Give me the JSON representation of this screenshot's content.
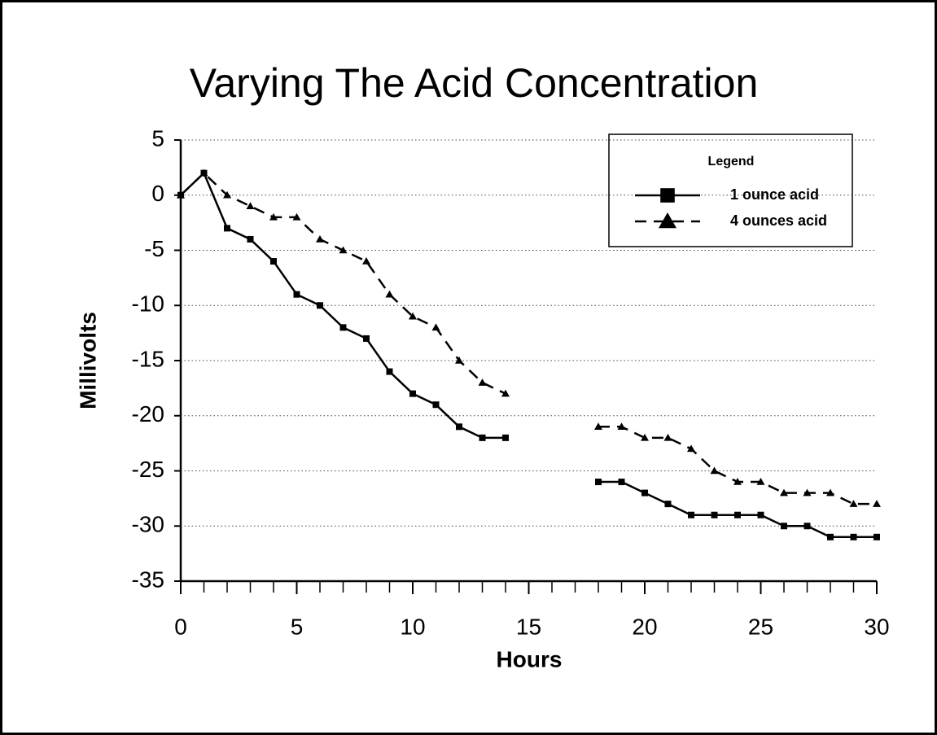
{
  "chart_data": {
    "type": "line",
    "title": "Varying The Acid Concentration",
    "x_label": "Hours",
    "y_label": "Millivolts",
    "legend_title": "Legend",
    "legend": "upper right",
    "grid": true,
    "x": [
      0,
      1,
      2,
      3,
      4,
      5,
      6,
      7,
      8,
      9,
      10,
      11,
      12,
      13,
      14,
      15,
      16,
      17,
      18,
      19,
      20,
      21,
      22,
      23,
      24,
      25,
      26,
      27,
      28,
      29,
      30
    ],
    "series": [
      {
        "name": "1 ounce acid",
        "color": "#000000",
        "line_style": "solid",
        "marker": "square",
        "values": [
          0,
          2,
          -3,
          -4,
          -6,
          -9,
          -10,
          -12,
          -13,
          -16,
          -18,
          -19,
          -21,
          -22,
          -22,
          null,
          null,
          null,
          -26,
          -26,
          -27,
          -28,
          -29,
          -29,
          -29,
          -29,
          -30,
          -30,
          -31,
          -31,
          -31
        ]
      },
      {
        "name": "4 ounces acid",
        "color": "#000000",
        "line_style": "dashed",
        "marker": "triangle",
        "values": [
          0,
          2,
          0,
          -1,
          -2,
          -2,
          -4,
          -5,
          -6,
          -9,
          -11,
          -12,
          -15,
          -17,
          -18,
          null,
          null,
          null,
          -21,
          -21,
          -22,
          -22,
          -23,
          -25,
          -26,
          -26,
          -27,
          -27,
          -27,
          -28,
          -28
        ]
      }
    ],
    "xlim": [
      0,
      30
    ],
    "xticks": [
      0,
      5,
      10,
      15,
      20,
      25,
      30
    ],
    "ylim": [
      -35,
      5
    ],
    "yticks": [
      5,
      0,
      -5,
      -10,
      -15,
      -20,
      -25,
      -30,
      -35
    ]
  }
}
